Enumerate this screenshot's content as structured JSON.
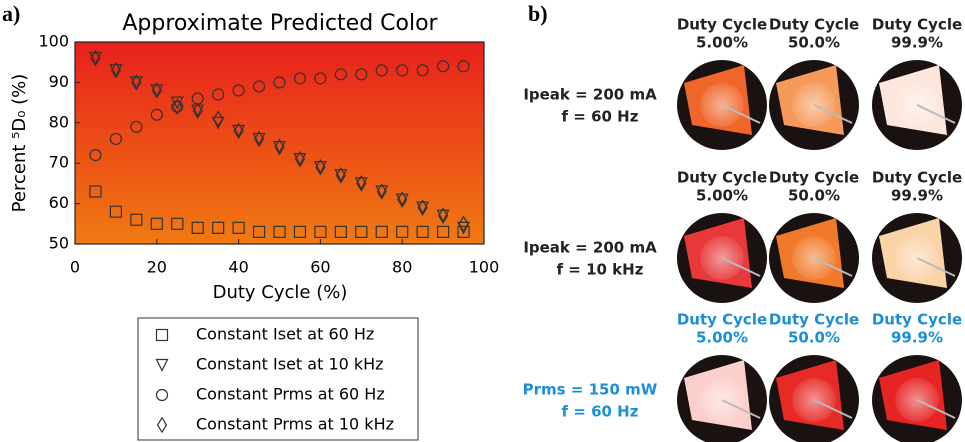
{
  "chart_data": {
    "type": "scatter",
    "panel_label": "a)",
    "title": "Approximate Predicted Color",
    "x_label": "Duty Cycle (%)",
    "y_label": "Percent ⁵D₀ (%)",
    "x": [
      5,
      10,
      15,
      20,
      25,
      30,
      35,
      40,
      45,
      50,
      55,
      60,
      65,
      70,
      75,
      80,
      85,
      90,
      95
    ],
    "series": [
      {
        "name": "Constant Iset at 60 Hz",
        "marker": "square",
        "color": "#333333",
        "values": [
          63,
          58,
          56,
          55,
          55,
          54,
          54,
          54,
          53,
          53,
          53,
          53,
          53,
          53,
          53,
          53,
          53,
          53,
          53
        ]
      },
      {
        "name": "Constant Iset at 10 kHz",
        "marker": "triangle-down",
        "color": "#333333",
        "values": [
          96,
          93,
          90,
          88,
          85,
          83,
          80,
          78,
          76,
          74,
          71,
          69,
          67,
          65,
          63,
          61,
          59,
          57,
          54
        ]
      },
      {
        "name": "Constant Prms at 60 Hz",
        "marker": "circle",
        "color": "#333333",
        "values": [
          72,
          76,
          79,
          82,
          84,
          86,
          87,
          88,
          89,
          90,
          91,
          91,
          92,
          92,
          93,
          93,
          93,
          94,
          94
        ]
      },
      {
        "name": "Constant Prms at 10 kHz",
        "marker": "diamond",
        "color": "#333333",
        "values": [
          96,
          93,
          90,
          88,
          84,
          83,
          81,
          78,
          76,
          74,
          71,
          69,
          67,
          65,
          63,
          61,
          59,
          57,
          55
        ]
      }
    ],
    "xlim": [
      0,
      100
    ],
    "xticks": [
      0,
      20,
      40,
      60,
      80,
      100
    ],
    "ylim": [
      50,
      100
    ],
    "yticks": [
      50,
      60,
      70,
      80,
      90,
      100
    ]
  },
  "panel_b": {
    "label": "b)",
    "rows": [
      {
        "line1": "Ipeak = 200 mA",
        "line2": "f = 60 Hz",
        "color": "#222222",
        "columns": [
          [
            "Duty Cycle",
            "5.00%"
          ],
          [
            "Duty Cycle",
            "50.0%"
          ],
          [
            "Duty Cycle",
            "99.9%"
          ]
        ]
      },
      {
        "line1": "Ipeak = 200 mA",
        "line2": "f = 10 kHz",
        "color": "#222222",
        "columns": [
          [
            "Duty Cycle",
            "5.00%"
          ],
          [
            "Duty Cycle",
            "50.0%"
          ],
          [
            "Duty Cycle",
            "99.9%"
          ]
        ]
      },
      {
        "line1": "Prms = 150 mW",
        "line2": "f = 60 Hz",
        "color": "#1a8fd6",
        "columns": [
          [
            "Duty Cycle",
            "5.00%"
          ],
          [
            "Duty Cycle",
            "50.0%"
          ],
          [
            "Duty Cycle",
            "99.9%"
          ]
        ]
      }
    ]
  }
}
